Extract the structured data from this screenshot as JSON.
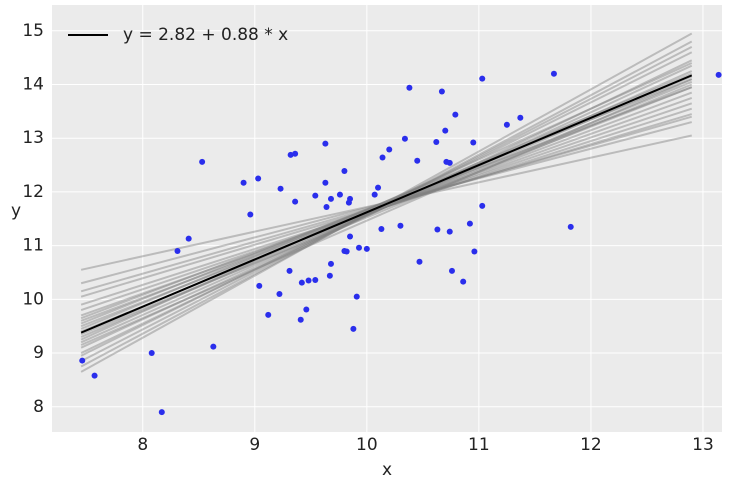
{
  "chart_data": {
    "type": "scatter",
    "xlabel": "x",
    "ylabel": "y",
    "xlim": [
      7.19,
      13.17
    ],
    "ylim": [
      7.53,
      15.48
    ],
    "xticks": [
      8,
      9,
      10,
      11,
      12,
      13
    ],
    "yticks": [
      8,
      9,
      10,
      11,
      12,
      13,
      14,
      15
    ],
    "grid": true,
    "legend": "upper left",
    "background": "#ebebeb",
    "points": {
      "color": "#2a2eec",
      "x": [
        7.46,
        7.57,
        8.08,
        8.17,
        8.31,
        8.41,
        8.53,
        8.63,
        8.9,
        8.96,
        9.03,
        9.04,
        9.12,
        9.22,
        9.23,
        9.31,
        9.32,
        9.36,
        9.36,
        9.41,
        9.42,
        9.46,
        9.48,
        9.54,
        9.54,
        9.63,
        9.63,
        9.64,
        9.67,
        9.68,
        9.68,
        9.76,
        9.8,
        9.8,
        9.82,
        9.84,
        9.85,
        9.85,
        9.88,
        9.91,
        9.93,
        10.0,
        10.07,
        10.1,
        10.13,
        10.14,
        10.2,
        10.3,
        10.34,
        10.38,
        10.45,
        10.47,
        10.62,
        10.63,
        10.67,
        10.7,
        10.71,
        10.74,
        10.74,
        10.76,
        10.79,
        10.86,
        10.92,
        10.95,
        10.96,
        11.03,
        11.03,
        11.25,
        11.37,
        11.67,
        11.82,
        13.14
      ],
      "values": [
        8.86,
        8.58,
        9.0,
        7.9,
        10.9,
        11.13,
        12.56,
        9.12,
        12.17,
        11.58,
        12.25,
        10.25,
        9.71,
        10.1,
        12.06,
        10.53,
        12.69,
        12.71,
        11.82,
        9.62,
        10.31,
        9.81,
        10.35,
        11.93,
        10.36,
        12.17,
        12.9,
        11.72,
        10.44,
        11.87,
        10.66,
        11.95,
        12.39,
        10.9,
        10.89,
        11.8,
        11.87,
        11.17,
        9.45,
        10.05,
        10.96,
        10.94,
        11.95,
        12.08,
        11.31,
        12.64,
        12.79,
        11.37,
        12.99,
        13.94,
        12.58,
        10.7,
        12.93,
        11.3,
        13.87,
        13.14,
        12.56,
        12.54,
        11.26,
        10.53,
        13.44,
        10.33,
        11.41,
        12.92,
        10.89,
        14.11,
        11.74,
        13.25,
        13.38,
        14.2,
        11.35,
        14.18
      ]
    },
    "posterior_lines": {
      "color": "#808080",
      "opacity": 0.45,
      "x": [
        7.45,
        12.9
      ],
      "values": [
        [
          10.55,
          13.05
        ],
        [
          10.3,
          13.3
        ],
        [
          10.15,
          13.4
        ],
        [
          10.05,
          13.45
        ],
        [
          8.65,
          14.95
        ],
        [
          8.75,
          14.8
        ],
        [
          8.85,
          14.7
        ],
        [
          9.9,
          13.55
        ],
        [
          9.8,
          13.65
        ],
        [
          9.7,
          13.75
        ],
        [
          9.6,
          13.85
        ],
        [
          9.5,
          13.95
        ],
        [
          9.4,
          14.05
        ],
        [
          9.3,
          14.15
        ],
        [
          9.2,
          14.25
        ],
        [
          9.1,
          14.35
        ],
        [
          9.0,
          14.45
        ],
        [
          8.95,
          14.6
        ],
        [
          9.45,
          14.2
        ],
        [
          9.35,
          14.0
        ],
        [
          9.55,
          14.1
        ],
        [
          9.25,
          14.4
        ],
        [
          9.65,
          13.95
        ],
        [
          9.15,
          14.1
        ]
      ]
    },
    "series": [
      {
        "name": "y = 2.82 + 0.88 * x",
        "color": "#000000",
        "x": [
          7.45,
          12.9
        ],
        "values": [
          9.38,
          14.17
        ]
      }
    ]
  }
}
